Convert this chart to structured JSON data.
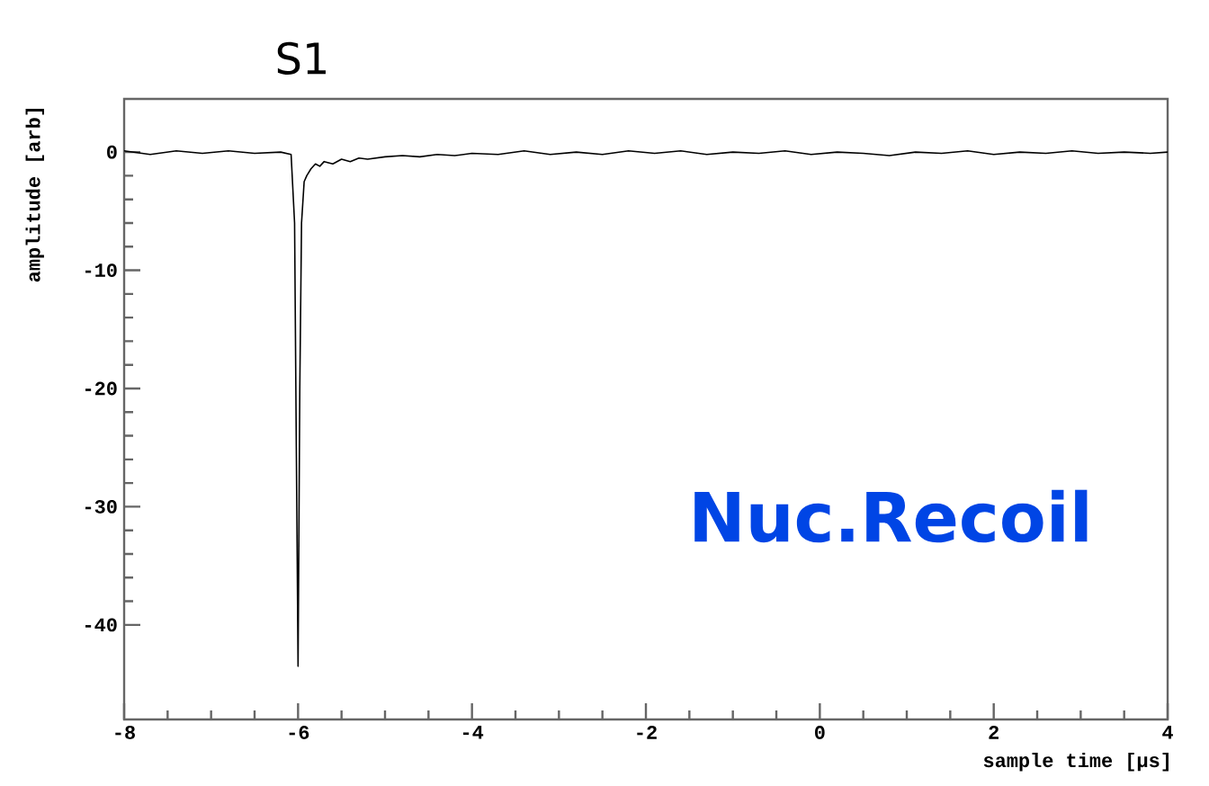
{
  "chart_data": {
    "type": "line",
    "title": "S1",
    "xlabel": "sample time [µs]",
    "ylabel": "amplitude [arb]",
    "annotations": [
      "Nuc.Recoil"
    ],
    "xlim": [
      -8,
      4
    ],
    "xticks": [
      -8,
      -6,
      -4,
      -2,
      0,
      2,
      4
    ],
    "ylim": [
      -48,
      4.5
    ],
    "yticks": [
      -40,
      -30,
      -20,
      -10,
      0
    ],
    "marker": "none",
    "line_style": "solid",
    "series": [
      {
        "color": "#000000",
        "x": [
          -8,
          -7.7,
          -7.4,
          -7.1,
          -6.8,
          -6.5,
          -6.2,
          -6.08,
          -6.04,
          -6.02,
          -6.0,
          -5.98,
          -5.96,
          -5.93,
          -5.9,
          -5.85,
          -5.8,
          -5.75,
          -5.7,
          -5.6,
          -5.5,
          -5.4,
          -5.3,
          -5.2,
          -5.0,
          -4.8,
          -4.6,
          -4.4,
          -4.2,
          -4.0,
          -3.7,
          -3.4,
          -3.1,
          -2.8,
          -2.5,
          -2.2,
          -1.9,
          -1.6,
          -1.3,
          -1.0,
          -0.7,
          -0.4,
          -0.1,
          0.2,
          0.5,
          0.8,
          1.1,
          1.4,
          1.7,
          2.0,
          2.3,
          2.6,
          2.9,
          3.2,
          3.5,
          3.8,
          4.0
        ],
        "values": [
          0.1,
          -0.2,
          0.1,
          -0.1,
          0.1,
          -0.1,
          0.0,
          -0.2,
          -6,
          -25,
          -43.5,
          -20,
          -6,
          -2.5,
          -2.0,
          -1.4,
          -1.0,
          -1.2,
          -0.8,
          -1.0,
          -0.6,
          -0.8,
          -0.5,
          -0.6,
          -0.4,
          -0.3,
          -0.4,
          -0.2,
          -0.3,
          -0.1,
          -0.2,
          0.1,
          -0.2,
          0.0,
          -0.2,
          0.1,
          -0.1,
          0.1,
          -0.2,
          0.0,
          -0.1,
          0.1,
          -0.2,
          0.0,
          -0.1,
          -0.3,
          0.0,
          -0.1,
          0.1,
          -0.2,
          0.0,
          -0.1,
          0.1,
          -0.1,
          0.0,
          -0.1,
          0.0
        ]
      }
    ]
  }
}
